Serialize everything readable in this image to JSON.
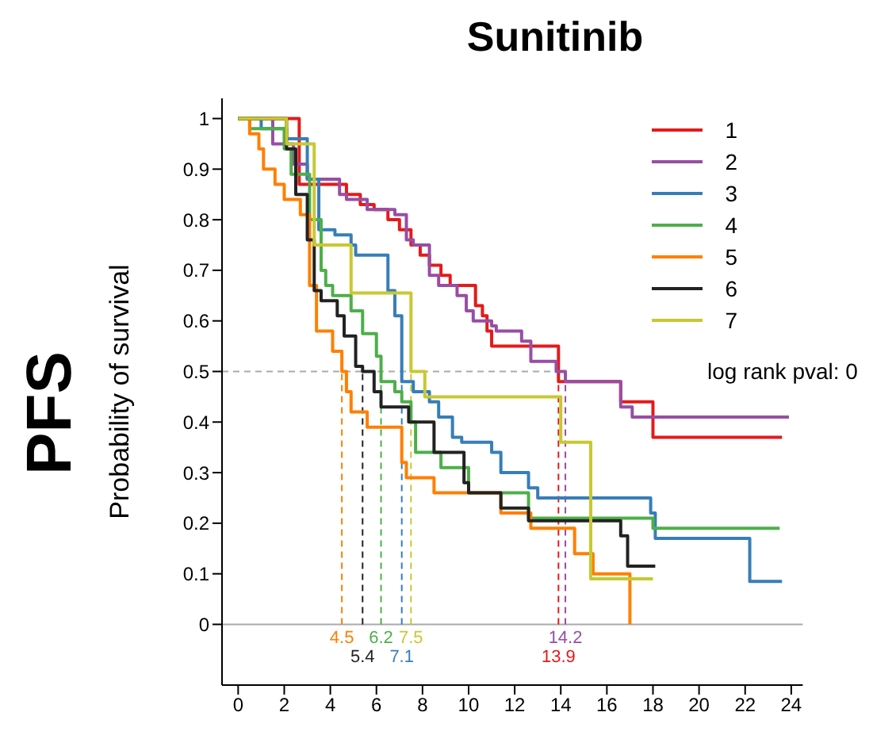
{
  "chart_data": {
    "type": "step",
    "title": "Sunitinib",
    "ylabel": "Probability of survival",
    "annotations": [
      "PFS",
      "log rank pval: 0"
    ],
    "xlim": [
      -0.7,
      24.5
    ],
    "xticks": [
      0,
      2,
      4,
      6,
      8,
      10,
      12,
      14,
      16,
      18,
      20,
      22,
      24
    ],
    "ylim": [
      -0.12,
      1.04
    ],
    "yticks": [
      0,
      0.1,
      0.2,
      0.3,
      0.4,
      0.5,
      0.6,
      0.7,
      0.8,
      0.9,
      1
    ],
    "grid": false,
    "legend": "top right",
    "line_style": "solid",
    "ref_lines": [
      {
        "axis": "y",
        "value": 0,
        "color": "#aaaaaa",
        "line_style": "solid"
      },
      {
        "axis": "y",
        "value": 0.5,
        "color": "#aaaaaa",
        "line_style": "dashed"
      },
      {
        "axis": "x",
        "value": 4.5,
        "label": "4.5",
        "color": "#ff7f00",
        "line_style": "dashed"
      },
      {
        "axis": "x",
        "value": 5.4,
        "label": "5.4",
        "color": "#222222",
        "line_style": "dashed"
      },
      {
        "axis": "x",
        "value": 6.2,
        "label": "6.2",
        "color": "#4daf4a",
        "line_style": "dashed"
      },
      {
        "axis": "x",
        "value": 7.1,
        "label": "7.1",
        "color": "#377eb8",
        "line_style": "dashed"
      },
      {
        "axis": "x",
        "value": 7.5,
        "label": "7.5",
        "color": "#c8c832",
        "line_style": "dashed"
      },
      {
        "axis": "x",
        "value": 13.9,
        "label": "13.9",
        "color": "#e41a1c",
        "line_style": "dashed"
      },
      {
        "axis": "x",
        "value": 14.2,
        "label": "14.2",
        "color": "#984ea3",
        "line_style": "dashed"
      }
    ],
    "series": [
      {
        "name": "1",
        "color": "#e41a1c",
        "x": [
          0,
          2.65,
          4.7,
          5.3,
          5.9,
          6.5,
          7.0,
          7.5,
          7.9,
          8.3,
          8.8,
          9.2,
          10.3,
          10.6,
          10.8,
          11.0,
          13.9,
          16.6,
          18.0,
          23.6
        ],
        "values": [
          1,
          0.87,
          0.85,
          0.83,
          0.82,
          0.8,
          0.78,
          0.75,
          0.73,
          0.71,
          0.69,
          0.67,
          0.63,
          0.61,
          0.58,
          0.55,
          0.48,
          0.44,
          0.37,
          0.37
        ]
      },
      {
        "name": "2",
        "color": "#984ea3",
        "x": [
          0,
          1.5,
          2.4,
          3.0,
          4.4,
          4.7,
          5.6,
          6.8,
          7.3,
          7.6,
          8.3,
          8.7,
          9.5,
          9.9,
          10.2,
          11.0,
          11.2,
          12.3,
          12.7,
          13.8,
          14.2,
          16.6,
          17.1,
          23.9
        ],
        "values": [
          1,
          0.95,
          0.91,
          0.88,
          0.85,
          0.84,
          0.82,
          0.81,
          0.76,
          0.75,
          0.69,
          0.67,
          0.65,
          0.62,
          0.6,
          0.59,
          0.58,
          0.56,
          0.52,
          0.5,
          0.48,
          0.43,
          0.41,
          0.41
        ]
      },
      {
        "name": "3",
        "color": "#377eb8",
        "x": [
          0,
          1.0,
          2.1,
          3.0,
          3.5,
          4.2,
          4.9,
          5.1,
          6.5,
          6.8,
          7.1,
          7.6,
          8.3,
          8.7,
          9.3,
          9.7,
          11.0,
          11.4,
          12.6,
          13.0,
          17.9,
          18.1,
          22.2,
          23.6
        ],
        "values": [
          1,
          0.98,
          0.96,
          0.88,
          0.78,
          0.77,
          0.75,
          0.73,
          0.66,
          0.61,
          0.48,
          0.46,
          0.44,
          0.41,
          0.37,
          0.36,
          0.34,
          0.3,
          0.27,
          0.25,
          0.22,
          0.17,
          0.085,
          0.085
        ]
      },
      {
        "name": "4",
        "color": "#4daf4a",
        "x": [
          0,
          0.5,
          2.0,
          2.3,
          3.1,
          3.6,
          3.8,
          4.1,
          4.9,
          5.4,
          6.0,
          6.2,
          6.8,
          7.1,
          7.5,
          7.7,
          8.8,
          10.0,
          12.6,
          18.0,
          23.5
        ],
        "values": [
          1,
          0.98,
          0.94,
          0.89,
          0.8,
          0.7,
          0.67,
          0.65,
          0.62,
          0.575,
          0.53,
          0.48,
          0.46,
          0.44,
          0.4,
          0.34,
          0.31,
          0.26,
          0.21,
          0.19,
          0.19
        ]
      },
      {
        "name": "5",
        "color": "#ff7f00",
        "x": [
          0,
          0.5,
          0.9,
          1.1,
          1.6,
          2.0,
          2.7,
          3.1,
          3.4,
          4.1,
          4.5,
          4.7,
          4.9,
          5.6,
          7.1,
          7.3,
          8.5,
          11.4,
          12.7,
          14.6,
          15.4,
          17.0
        ],
        "values": [
          1,
          0.97,
          0.94,
          0.9,
          0.87,
          0.84,
          0.81,
          0.67,
          0.58,
          0.54,
          0.5,
          0.46,
          0.42,
          0.39,
          0.32,
          0.29,
          0.26,
          0.22,
          0.19,
          0.14,
          0.1,
          0
        ]
      },
      {
        "name": "6",
        "color": "#222222",
        "x": [
          0,
          2.1,
          2.5,
          3.0,
          3.3,
          3.6,
          4.3,
          4.6,
          5.1,
          5.4,
          5.9,
          6.2,
          7.4,
          8.5,
          9.8,
          10.0,
          11.4,
          12.6,
          16.6,
          16.9,
          18.1
        ],
        "values": [
          1,
          0.94,
          0.85,
          0.76,
          0.66,
          0.64,
          0.61,
          0.57,
          0.51,
          0.5,
          0.46,
          0.43,
          0.4,
          0.34,
          0.28,
          0.26,
          0.23,
          0.205,
          0.175,
          0.115,
          0.115
        ]
      },
      {
        "name": "7",
        "color": "#c8c832",
        "x": [
          0,
          2.1,
          3.3,
          4.9,
          7.5,
          8.1,
          14.0,
          15.3,
          18.0
        ],
        "values": [
          1,
          0.95,
          0.75,
          0.655,
          0.5,
          0.45,
          0.36,
          0.09,
          0.09
        ]
      }
    ]
  }
}
